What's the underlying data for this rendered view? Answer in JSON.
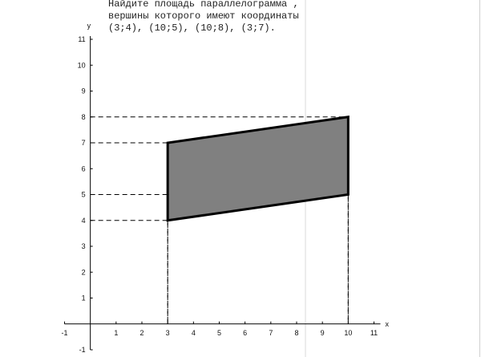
{
  "chart_data": {
    "type": "polygon",
    "title": [
      "Найдите площадь параллелограмма ,",
      "вершины которого имеют координаты",
      "(3;4), (10;5), (10;8), (3;7)."
    ],
    "xlabel": "x",
    "ylabel": "y",
    "x": [
      3,
      10,
      10,
      3
    ],
    "y": [
      4,
      5,
      8,
      7
    ],
    "color": "#808080",
    "xlim": [
      -1,
      11
    ],
    "ylim": [
      -1,
      11
    ],
    "xticks": [
      -1,
      1,
      2,
      3,
      4,
      5,
      6,
      7,
      8,
      9,
      10,
      11
    ],
    "yticks": [
      -1,
      1,
      2,
      3,
      4,
      5,
      6,
      7,
      8,
      9,
      10,
      11
    ],
    "guides": true
  }
}
